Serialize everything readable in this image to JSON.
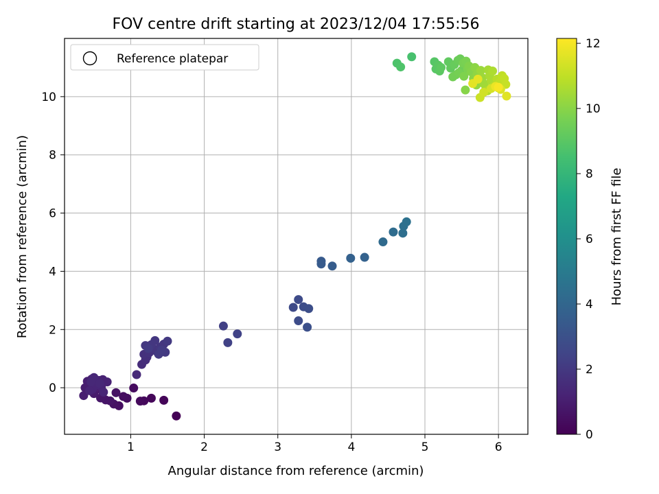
{
  "chart_data": {
    "type": "scatter",
    "title": "FOV centre drift starting at 2023/12/04 17:55:56",
    "xlabel": "Angular distance from reference (arcmin)",
    "ylabel": "Rotation from reference (arcmin)",
    "xlim": [
      0.1,
      6.4
    ],
    "ylim": [
      -1.6,
      12.0
    ],
    "xticks": [
      1,
      2,
      3,
      4,
      5,
      6
    ],
    "yticks": [
      0,
      2,
      4,
      6,
      8,
      10
    ],
    "grid": true,
    "legend": {
      "placement": "upper-left",
      "entries": [
        "Reference platepar"
      ]
    },
    "colorbar": {
      "label": "Hours from first FF file",
      "colormap": "viridis",
      "range": [
        0,
        12.15
      ],
      "ticks": [
        0,
        2,
        4,
        6,
        8,
        10,
        12
      ]
    },
    "points": [
      {
        "x": 1.62,
        "y": -0.97,
        "c": 0.05
      },
      {
        "x": 1.45,
        "y": -0.43,
        "c": 0.15
      },
      {
        "x": 1.28,
        "y": -0.36,
        "c": 0.2
      },
      {
        "x": 1.18,
        "y": -0.45,
        "c": 0.25
      },
      {
        "x": 1.13,
        "y": -0.46,
        "c": 0.3
      },
      {
        "x": 1.04,
        "y": -0.01,
        "c": 0.35
      },
      {
        "x": 0.95,
        "y": -0.36,
        "c": 0.4
      },
      {
        "x": 0.9,
        "y": -0.3,
        "c": 0.45
      },
      {
        "x": 0.84,
        "y": -0.62,
        "c": 0.5
      },
      {
        "x": 0.77,
        "y": -0.56,
        "c": 0.55
      },
      {
        "x": 0.8,
        "y": -0.17,
        "c": 0.6
      },
      {
        "x": 0.72,
        "y": -0.45,
        "c": 0.65
      },
      {
        "x": 0.66,
        "y": -0.42,
        "c": 0.7
      },
      {
        "x": 0.59,
        "y": -0.35,
        "c": 0.75
      },
      {
        "x": 0.61,
        "y": -0.1,
        "c": 0.8
      },
      {
        "x": 0.55,
        "y": 0.05,
        "c": 0.85
      },
      {
        "x": 0.5,
        "y": -0.2,
        "c": 0.9
      },
      {
        "x": 0.44,
        "y": 0.12,
        "c": 0.95
      },
      {
        "x": 0.38,
        "y": 0.0,
        "c": 1.0
      },
      {
        "x": 0.36,
        "y": -0.27,
        "c": 1.02
      },
      {
        "x": 0.41,
        "y": 0.22,
        "c": 1.05
      },
      {
        "x": 0.47,
        "y": 0.3,
        "c": 1.08
      },
      {
        "x": 0.52,
        "y": 0.18,
        "c": 1.1
      },
      {
        "x": 0.57,
        "y": 0.25,
        "c": 1.13
      },
      {
        "x": 0.62,
        "y": 0.28,
        "c": 1.16
      },
      {
        "x": 0.68,
        "y": 0.2,
        "c": 1.18
      },
      {
        "x": 0.6,
        "y": 0.03,
        "c": 1.2
      },
      {
        "x": 0.48,
        "y": -0.05,
        "c": 1.22
      },
      {
        "x": 0.53,
        "y": 0.08,
        "c": 1.25
      },
      {
        "x": 0.44,
        "y": -0.1,
        "c": 1.27
      },
      {
        "x": 0.63,
        "y": -0.15,
        "c": 1.3
      },
      {
        "x": 0.5,
        "y": 0.35,
        "c": 1.32
      },
      {
        "x": 0.58,
        "y": 0.15,
        "c": 1.35
      },
      {
        "x": 0.46,
        "y": 0.2,
        "c": 1.37
      },
      {
        "x": 1.08,
        "y": 0.45,
        "c": 1.45
      },
      {
        "x": 1.15,
        "y": 0.8,
        "c": 1.55
      },
      {
        "x": 1.2,
        "y": 0.95,
        "c": 1.6
      },
      {
        "x": 1.22,
        "y": 1.05,
        "c": 1.65
      },
      {
        "x": 1.18,
        "y": 1.15,
        "c": 1.7
      },
      {
        "x": 1.25,
        "y": 1.2,
        "c": 1.75
      },
      {
        "x": 1.3,
        "y": 1.35,
        "c": 1.8
      },
      {
        "x": 1.35,
        "y": 1.25,
        "c": 1.85
      },
      {
        "x": 1.4,
        "y": 1.4,
        "c": 1.88
      },
      {
        "x": 1.45,
        "y": 1.5,
        "c": 1.9
      },
      {
        "x": 1.33,
        "y": 1.62,
        "c": 1.93
      },
      {
        "x": 1.28,
        "y": 1.48,
        "c": 1.95
      },
      {
        "x": 1.2,
        "y": 1.45,
        "c": 1.98
      },
      {
        "x": 1.5,
        "y": 1.6,
        "c": 2.0
      },
      {
        "x": 1.47,
        "y": 1.22,
        "c": 2.02
      },
      {
        "x": 1.38,
        "y": 1.15,
        "c": 2.05
      },
      {
        "x": 1.42,
        "y": 1.3,
        "c": 2.08
      },
      {
        "x": 1.24,
        "y": 1.35,
        "c": 2.1
      },
      {
        "x": 2.26,
        "y": 2.12,
        "c": 2.3
      },
      {
        "x": 2.32,
        "y": 1.55,
        "c": 2.35
      },
      {
        "x": 2.45,
        "y": 1.85,
        "c": 2.4
      },
      {
        "x": 3.21,
        "y": 2.76,
        "c": 2.7
      },
      {
        "x": 3.28,
        "y": 3.03,
        "c": 2.75
      },
      {
        "x": 3.28,
        "y": 2.3,
        "c": 2.8
      },
      {
        "x": 3.35,
        "y": 2.78,
        "c": 2.85
      },
      {
        "x": 3.42,
        "y": 2.72,
        "c": 2.9
      },
      {
        "x": 3.4,
        "y": 2.08,
        "c": 2.95
      },
      {
        "x": 3.59,
        "y": 4.35,
        "c": 3.4
      },
      {
        "x": 3.59,
        "y": 4.25,
        "c": 3.45
      },
      {
        "x": 3.74,
        "y": 4.18,
        "c": 3.5
      },
      {
        "x": 3.99,
        "y": 4.45,
        "c": 3.75
      },
      {
        "x": 4.18,
        "y": 4.48,
        "c": 3.8
      },
      {
        "x": 4.43,
        "y": 5.01,
        "c": 4.2
      },
      {
        "x": 4.57,
        "y": 5.35,
        "c": 4.3
      },
      {
        "x": 4.7,
        "y": 5.31,
        "c": 4.4
      },
      {
        "x": 4.71,
        "y": 5.55,
        "c": 4.45
      },
      {
        "x": 4.75,
        "y": 5.7,
        "c": 4.5
      },
      {
        "x": 4.82,
        "y": 11.37,
        "c": 8.6
      },
      {
        "x": 4.62,
        "y": 11.15,
        "c": 8.7
      },
      {
        "x": 4.67,
        "y": 11.02,
        "c": 8.75
      },
      {
        "x": 5.13,
        "y": 11.2,
        "c": 8.9
      },
      {
        "x": 5.15,
        "y": 10.95,
        "c": 8.95
      },
      {
        "x": 5.18,
        "y": 11.08,
        "c": 9.0
      },
      {
        "x": 5.2,
        "y": 10.88,
        "c": 9.05
      },
      {
        "x": 5.22,
        "y": 11.0,
        "c": 9.1
      },
      {
        "x": 5.32,
        "y": 11.2,
        "c": 9.15
      },
      {
        "x": 5.35,
        "y": 10.98,
        "c": 9.2
      },
      {
        "x": 5.4,
        "y": 11.1,
        "c": 9.3
      },
      {
        "x": 5.45,
        "y": 11.25,
        "c": 9.35
      },
      {
        "x": 5.48,
        "y": 11.3,
        "c": 9.4
      },
      {
        "x": 5.5,
        "y": 10.9,
        "c": 9.45
      },
      {
        "x": 5.42,
        "y": 10.75,
        "c": 9.5
      },
      {
        "x": 5.38,
        "y": 10.68,
        "c": 9.55
      },
      {
        "x": 5.46,
        "y": 10.82,
        "c": 9.6
      },
      {
        "x": 5.52,
        "y": 11.15,
        "c": 9.65
      },
      {
        "x": 5.56,
        "y": 11.22,
        "c": 9.7
      },
      {
        "x": 5.58,
        "y": 10.95,
        "c": 9.75
      },
      {
        "x": 5.53,
        "y": 10.7,
        "c": 9.8
      },
      {
        "x": 5.6,
        "y": 11.05,
        "c": 9.85
      },
      {
        "x": 5.63,
        "y": 10.85,
        "c": 9.9
      },
      {
        "x": 5.55,
        "y": 10.23,
        "c": 9.95
      },
      {
        "x": 5.66,
        "y": 10.62,
        "c": 10.0
      },
      {
        "x": 5.68,
        "y": 11.0,
        "c": 10.05
      },
      {
        "x": 5.71,
        "y": 10.78,
        "c": 10.1
      },
      {
        "x": 5.74,
        "y": 10.55,
        "c": 10.15
      },
      {
        "x": 5.7,
        "y": 10.4,
        "c": 10.2
      },
      {
        "x": 5.76,
        "y": 10.9,
        "c": 10.3
      },
      {
        "x": 5.78,
        "y": 10.65,
        "c": 10.35
      },
      {
        "x": 5.8,
        "y": 10.45,
        "c": 10.4
      },
      {
        "x": 5.83,
        "y": 10.3,
        "c": 10.45
      },
      {
        "x": 5.86,
        "y": 10.92,
        "c": 10.5
      },
      {
        "x": 5.88,
        "y": 10.72,
        "c": 10.55
      },
      {
        "x": 5.9,
        "y": 10.55,
        "c": 10.6
      },
      {
        "x": 5.92,
        "y": 10.88,
        "c": 10.65
      },
      {
        "x": 5.85,
        "y": 10.2,
        "c": 10.7
      },
      {
        "x": 5.95,
        "y": 10.38,
        "c": 10.8
      },
      {
        "x": 5.98,
        "y": 10.6,
        "c": 10.85
      },
      {
        "x": 6.0,
        "y": 10.3,
        "c": 10.9
      },
      {
        "x": 6.02,
        "y": 10.5,
        "c": 10.95
      },
      {
        "x": 6.05,
        "y": 10.72,
        "c": 11.0
      },
      {
        "x": 6.08,
        "y": 10.62,
        "c": 11.05
      },
      {
        "x": 6.1,
        "y": 10.42,
        "c": 11.1
      },
      {
        "x": 5.75,
        "y": 9.97,
        "c": 11.2
      },
      {
        "x": 5.8,
        "y": 10.15,
        "c": 11.3
      },
      {
        "x": 5.9,
        "y": 10.28,
        "c": 11.4
      },
      {
        "x": 6.03,
        "y": 10.25,
        "c": 11.5
      },
      {
        "x": 6.11,
        "y": 10.02,
        "c": 11.6
      },
      {
        "x": 5.65,
        "y": 10.45,
        "c": 11.65
      },
      {
        "x": 5.72,
        "y": 10.6,
        "c": 11.7
      },
      {
        "x": 5.96,
        "y": 10.35,
        "c": 11.8
      },
      {
        "x": 6.0,
        "y": 10.32,
        "c": 12.05
      }
    ]
  }
}
